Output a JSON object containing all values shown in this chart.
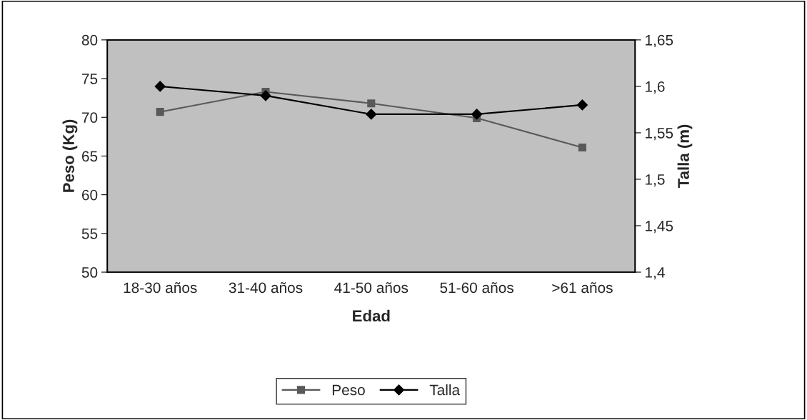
{
  "chart_data": {
    "type": "line",
    "xlabel": "Edad",
    "ylabel": "Peso (Kg)",
    "y2label": "Talla (m)",
    "categories": [
      "18-30 años",
      "31-40 años",
      "41-50 años",
      "51-60 años",
      ">61 años"
    ],
    "series": [
      {
        "name": "Peso",
        "color": "#595959",
        "marker": "square",
        "values": [
          70.7,
          73.3,
          71.8,
          69.9,
          66.1
        ]
      },
      {
        "name": "Talla",
        "color": "#000000",
        "marker": "diamond",
        "axis": "y2",
        "values": [
          1.6,
          1.59,
          1.57,
          1.57,
          1.58
        ]
      }
    ],
    "ylim": [
      50,
      80
    ],
    "yticks": [
      50,
      55,
      60,
      65,
      70,
      75,
      80
    ],
    "y2lim": [
      1.4,
      1.65
    ],
    "y2ticks": [
      {
        "value": 1.4,
        "label": "1,4"
      },
      {
        "value": 1.45,
        "label": "1,45"
      },
      {
        "value": 1.5,
        "label": "1,5"
      },
      {
        "value": 1.55,
        "label": "1,55"
      },
      {
        "value": 1.6,
        "label": "1,6"
      },
      {
        "value": 1.65,
        "label": "1,65"
      }
    ],
    "grid": false,
    "legend": "bottom",
    "line_style": "solid"
  }
}
